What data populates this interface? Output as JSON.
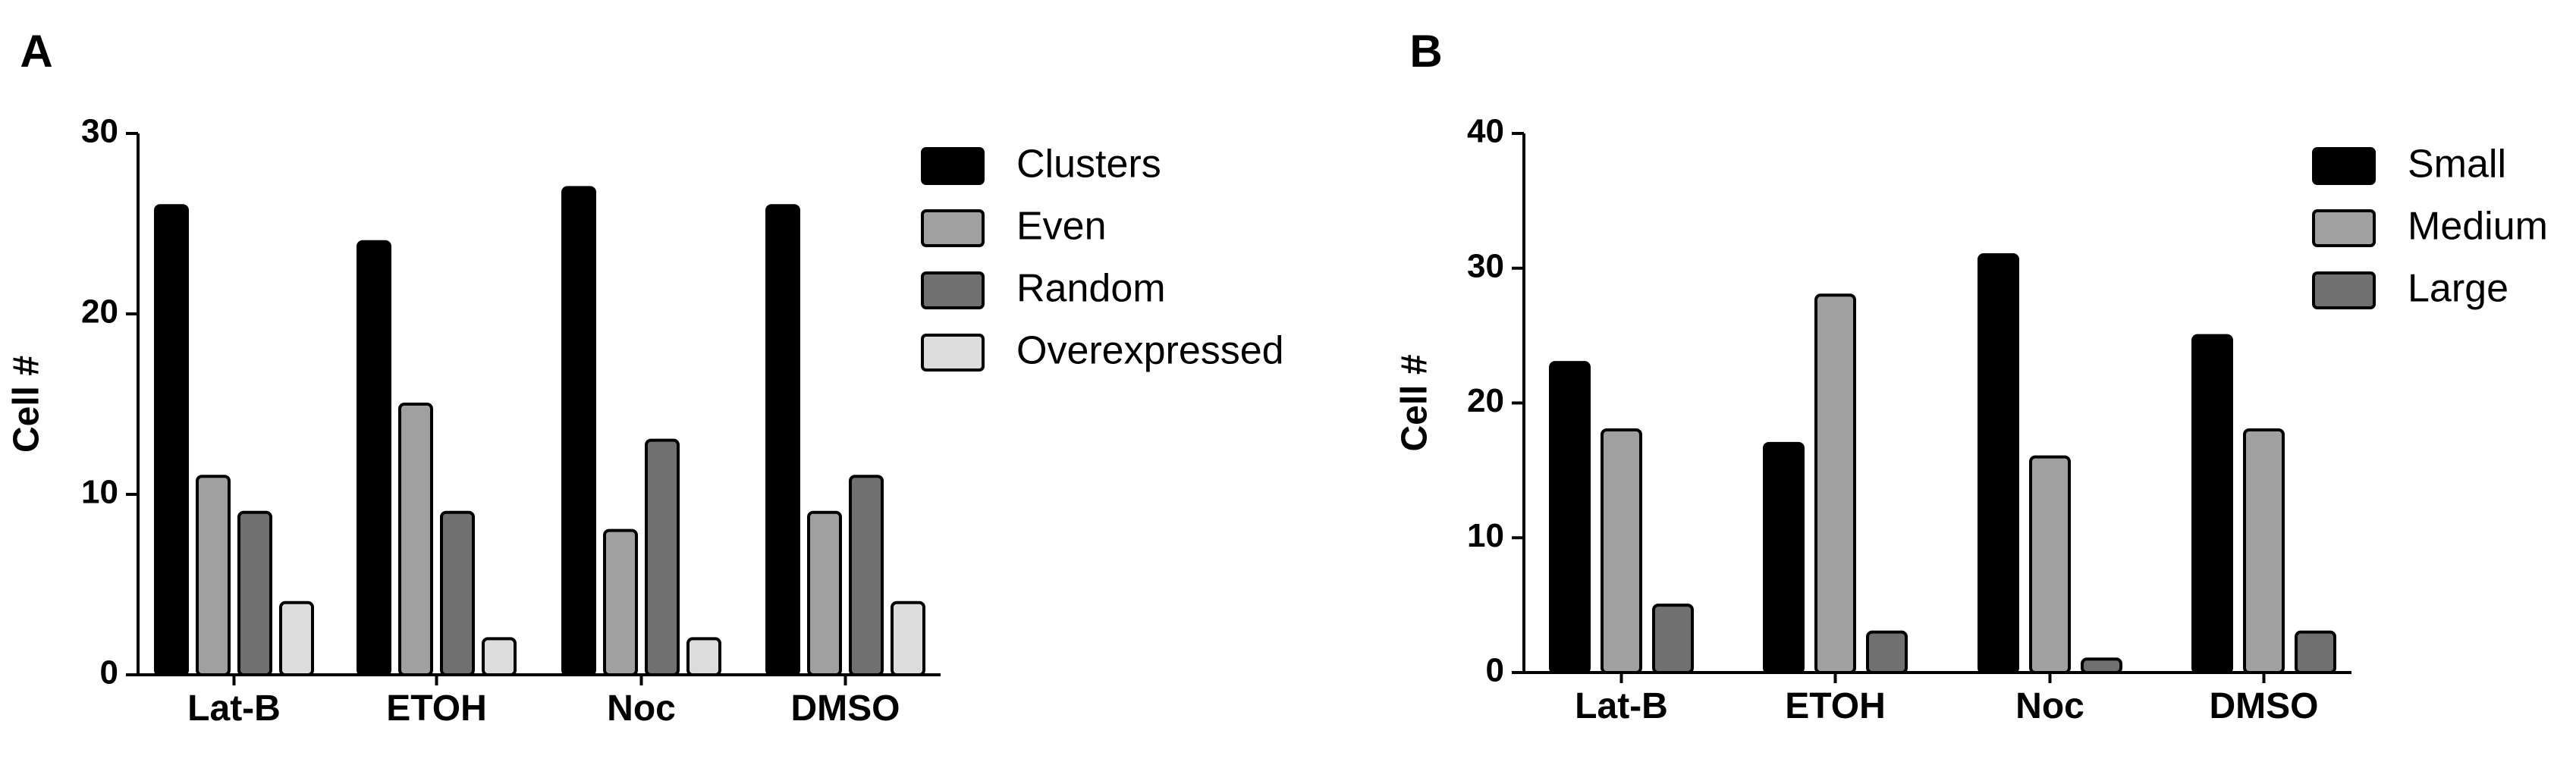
{
  "chart_data": [
    {
      "type": "bar",
      "panel": "A",
      "ylabel": "Cell #",
      "xlabel": "",
      "ylim": [
        0,
        30
      ],
      "yticks": [
        0,
        10,
        20,
        30
      ],
      "categories": [
        "Lat-B",
        "ETOH",
        "Noc",
        "DMSO"
      ],
      "series": [
        {
          "name": "Clusters",
          "color": "#000000",
          "values": [
            26,
            24,
            27,
            26
          ]
        },
        {
          "name": "Even",
          "color": "#a0a0a0",
          "values": [
            11,
            15,
            8,
            9
          ]
        },
        {
          "name": "Random",
          "color": "#707070",
          "values": [
            9,
            9,
            13,
            11
          ]
        },
        {
          "name": "Overexpressed",
          "color": "#dcdcdc",
          "values": [
            4,
            2,
            2,
            4
          ]
        }
      ],
      "legend_position": "top-right"
    },
    {
      "type": "bar",
      "panel": "B",
      "ylabel": "Cell #",
      "xlabel": "",
      "ylim": [
        0,
        40
      ],
      "yticks": [
        0,
        10,
        20,
        30,
        40
      ],
      "categories": [
        "Lat-B",
        "ETOH",
        "Noc",
        "DMSO"
      ],
      "series": [
        {
          "name": "Small",
          "color": "#000000",
          "values": [
            23,
            17,
            31,
            25
          ]
        },
        {
          "name": "Medium",
          "color": "#a0a0a0",
          "values": [
            18,
            28,
            16,
            18
          ]
        },
        {
          "name": "Large",
          "color": "#707070",
          "values": [
            5,
            3,
            1,
            3
          ]
        }
      ],
      "legend_position": "top-right"
    }
  ]
}
